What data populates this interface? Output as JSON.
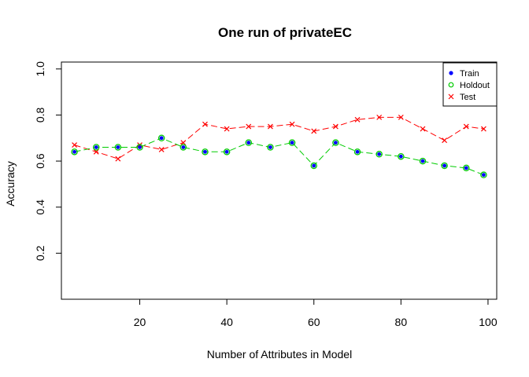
{
  "chart_data": {
    "type": "line",
    "title": "One run of privateEC",
    "xlabel": "Number of Attributes in Model",
    "ylabel": "Accuracy",
    "xlim": [
      2,
      102
    ],
    "ylim": [
      0,
      1.03
    ],
    "xticks": [
      20,
      40,
      60,
      80,
      100
    ],
    "yticks": [
      0.2,
      0.4,
      0.6,
      0.8,
      1.0
    ],
    "ytick_labels": [
      "0.2",
      "0.4",
      "0.6",
      "0.8",
      "1.0"
    ],
    "grid": false,
    "legend_position": "top-right",
    "x": [
      5,
      10,
      15,
      20,
      25,
      30,
      35,
      40,
      45,
      50,
      55,
      60,
      65,
      70,
      75,
      80,
      85,
      90,
      95,
      99
    ],
    "series": [
      {
        "name": "Train",
        "color": "#0000ff",
        "marker": "filled-circle",
        "values": [
          0.64,
          0.66,
          0.66,
          0.66,
          0.7,
          0.66,
          0.64,
          0.64,
          0.68,
          0.66,
          0.68,
          0.58,
          0.68,
          0.64,
          0.63,
          0.62,
          0.6,
          0.58,
          0.57,
          0.54
        ]
      },
      {
        "name": "Holdout",
        "color": "#00cc00",
        "marker": "open-circle",
        "line": "dashed",
        "values": [
          0.64,
          0.66,
          0.66,
          0.66,
          0.7,
          0.66,
          0.64,
          0.64,
          0.68,
          0.66,
          0.68,
          0.58,
          0.68,
          0.64,
          0.63,
          0.62,
          0.6,
          0.58,
          0.57,
          0.54
        ]
      },
      {
        "name": "Test",
        "color": "#ff0000",
        "marker": "cross",
        "line": "dashed",
        "values": [
          0.67,
          0.64,
          0.61,
          0.67,
          0.65,
          0.68,
          0.76,
          0.74,
          0.75,
          0.75,
          0.76,
          0.73,
          0.75,
          0.78,
          0.79,
          0.79,
          0.74,
          0.69,
          0.75,
          0.74
        ]
      }
    ]
  }
}
